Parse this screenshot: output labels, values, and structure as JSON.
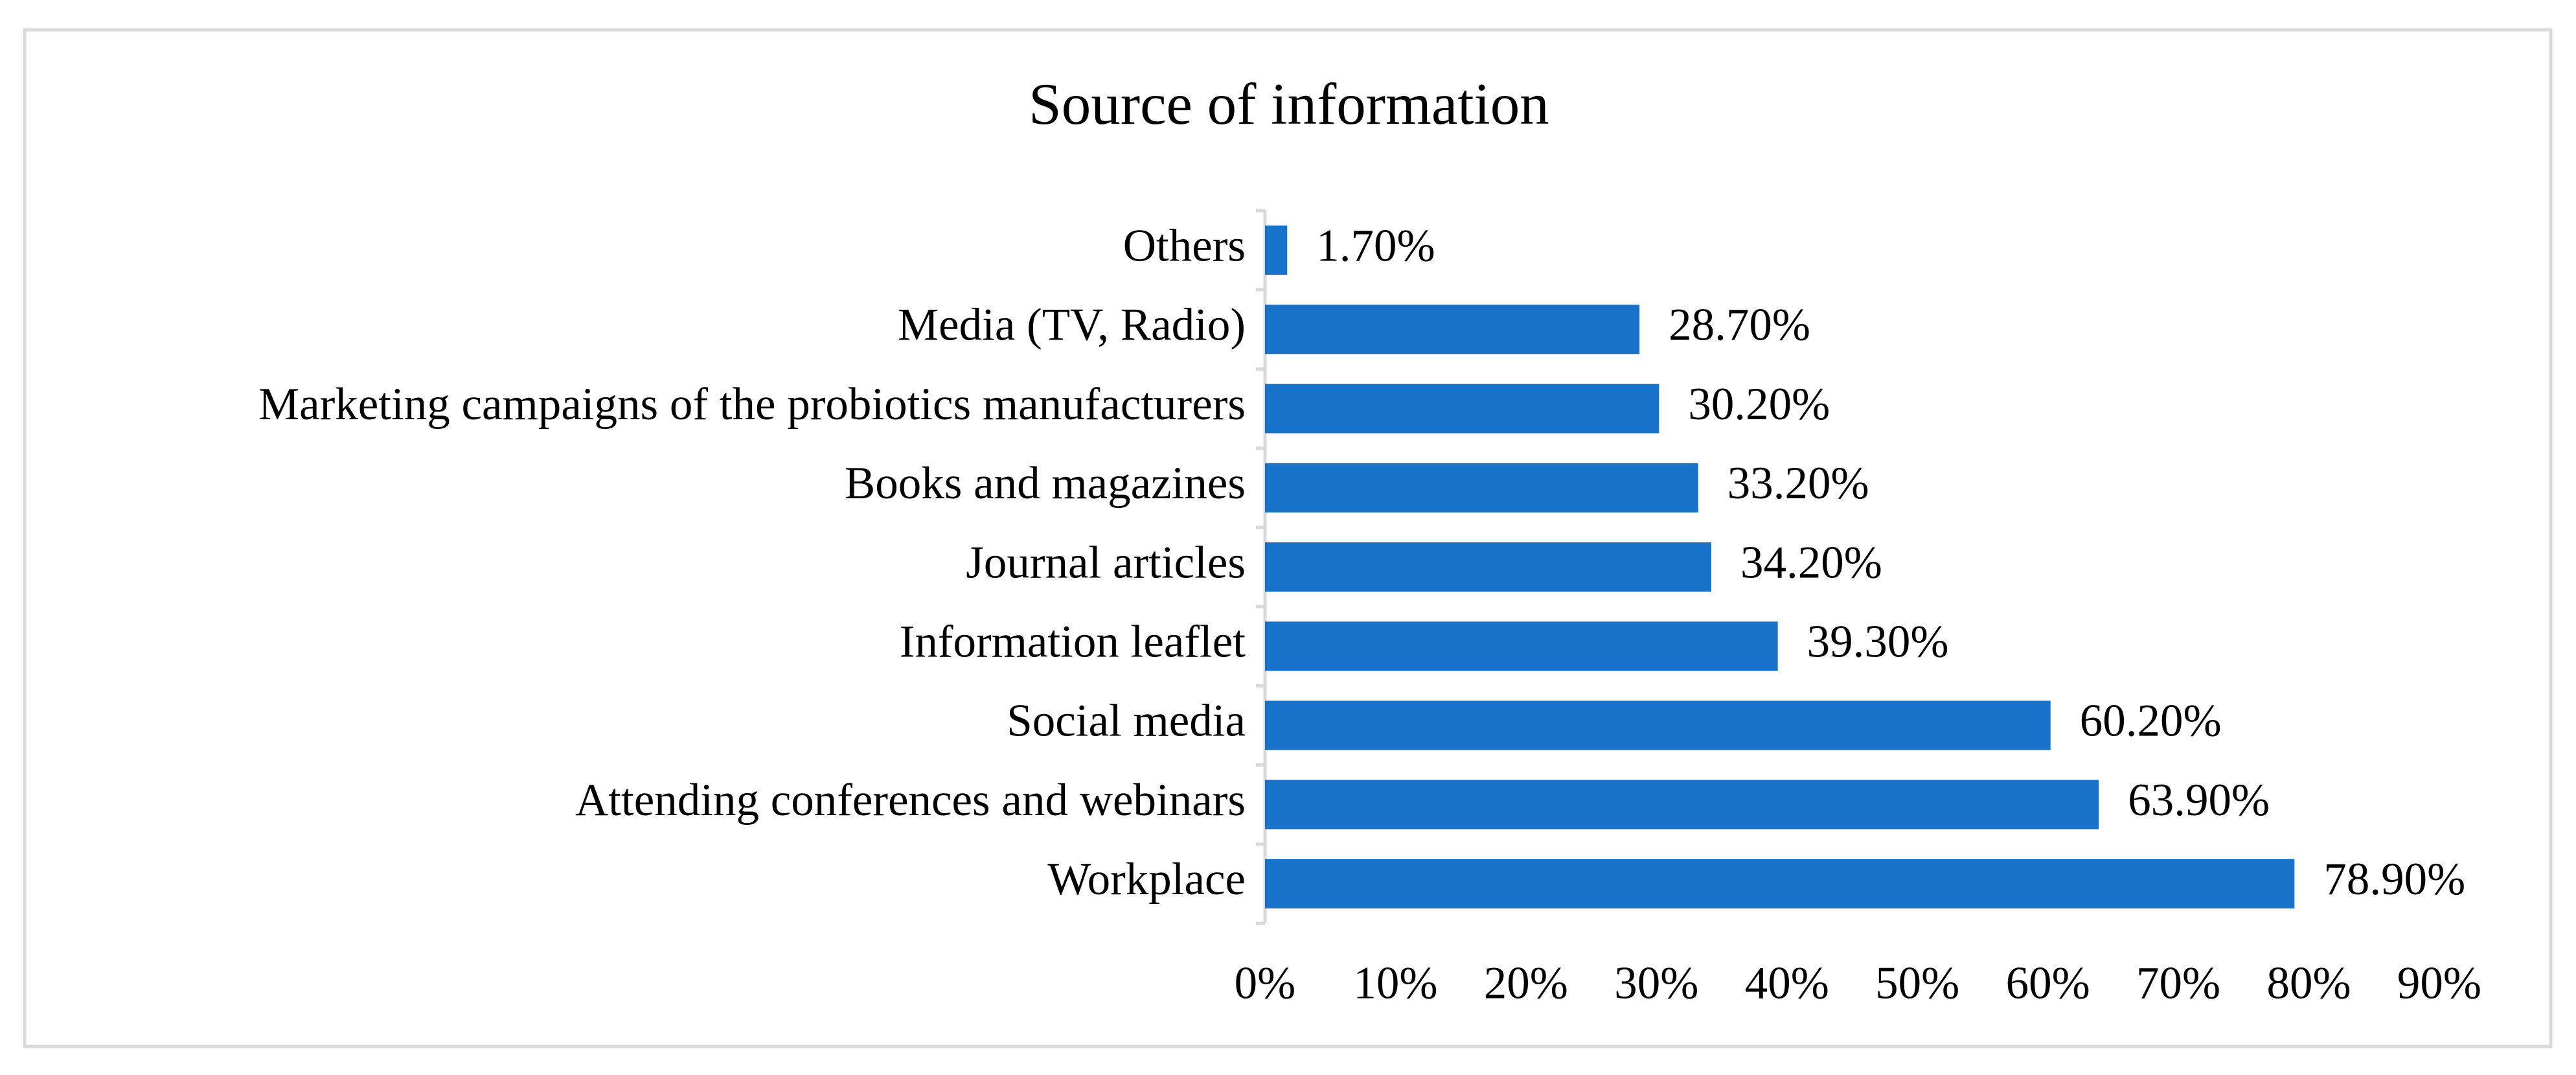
{
  "chart_data": {
    "type": "bar",
    "orientation": "horizontal",
    "title": "Source of information",
    "categories": [
      "Others",
      "Media (TV, Radio)",
      "Marketing campaigns of the probiotics manufacturers",
      "Books and magazines",
      "Journal articles",
      "Information leaflet",
      "Social media",
      "Attending conferences and webinars",
      "Workplace"
    ],
    "values": [
      1.7,
      28.7,
      30.2,
      33.2,
      34.2,
      39.3,
      60.2,
      63.9,
      78.9
    ],
    "value_labels": [
      "1.70%",
      "28.70%",
      "30.20%",
      "33.20%",
      "34.20%",
      "39.30%",
      "60.20%",
      "63.90%",
      "78.90%"
    ],
    "color": "#1872ca",
    "xlim": [
      0,
      90
    ],
    "xticks": [
      {
        "value": 0,
        "label": "0%"
      },
      {
        "value": 10,
        "label": "10%"
      },
      {
        "value": 20,
        "label": "20%"
      },
      {
        "value": 30,
        "label": "30%"
      },
      {
        "value": 40,
        "label": "40%"
      },
      {
        "value": 50,
        "label": "50%"
      },
      {
        "value": 60,
        "label": "60%"
      },
      {
        "value": 70,
        "label": "70%"
      },
      {
        "value": 80,
        "label": "80%"
      },
      {
        "value": 90,
        "label": "90%"
      }
    ],
    "grid": false
  }
}
